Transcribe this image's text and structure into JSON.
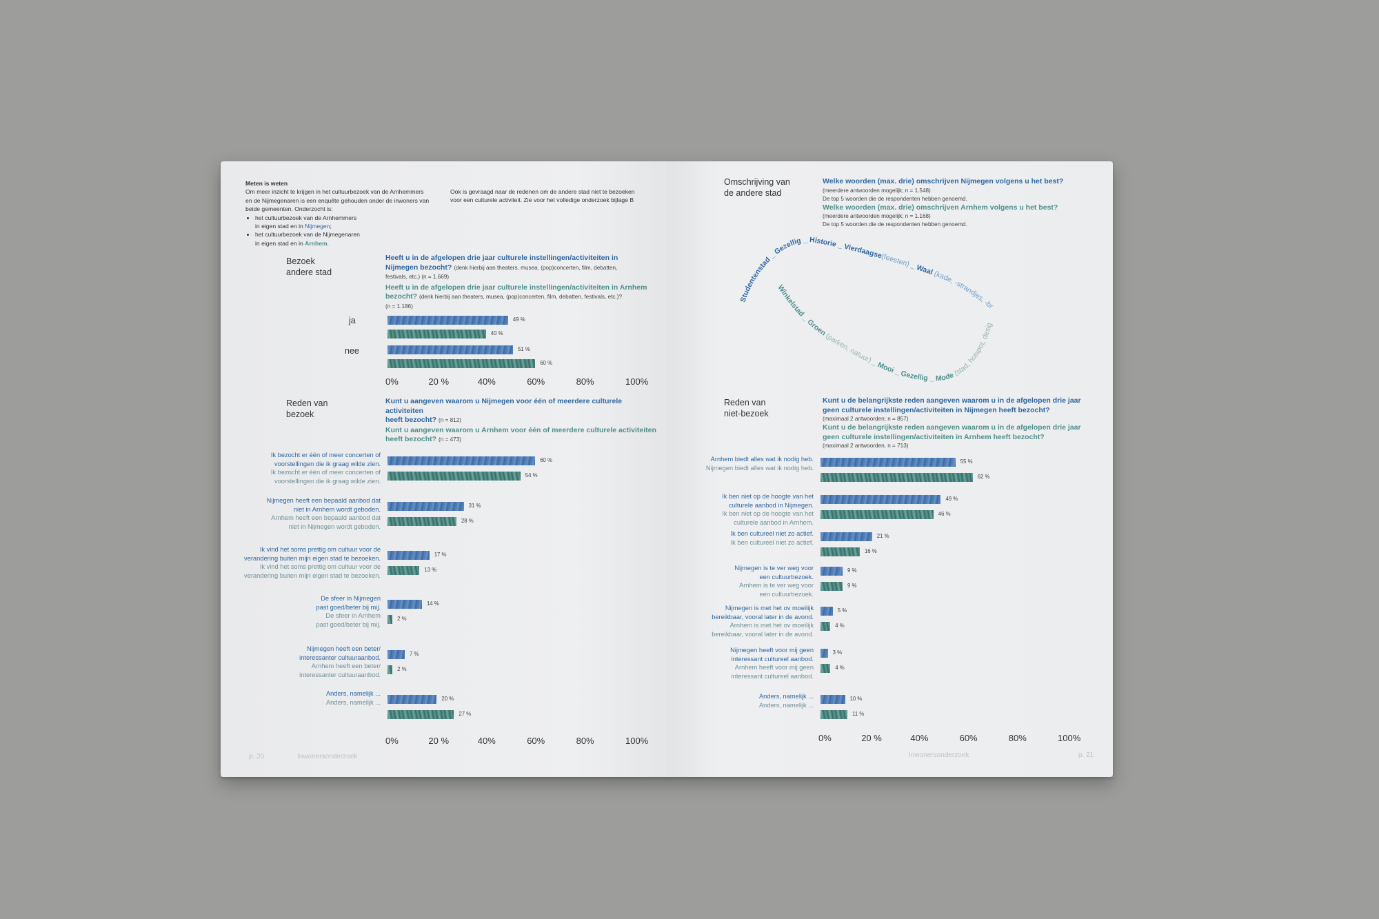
{
  "left": {
    "intro": {
      "heading": "Meten is weten",
      "col1_lines": [
        "Om meer inzicht te krijgen in het cultuurbezoek van de Arnhemmers",
        "en de Nijmegenaren is een enquête gehouden onder de inwoners van",
        "beide gemeenten. Onderzocht is:"
      ],
      "bullet1_a": "het cultuurbezoek van de Arnhemmers",
      "bullet1_b": "in eigen stad en in",
      "bullet1_city": "Nijmegen",
      "bullet2_a": "het cultuurbezoek van de Nijmegenaren",
      "bullet2_b": "in eigen stad en in",
      "bullet2_city": "Arnhem",
      "col2_lines": [
        "Ook is gevraagd naar de redenen om de andere stad niet te bezoeken",
        "voor een culturele activiteit. Zie voor het volledige onderzoek bijlage B"
      ]
    },
    "visit": {
      "title_lines": [
        "Bezoek",
        "andere stad"
      ],
      "q1_lines": [
        "Heeft u in de afgelopen drie jaar culturele instellingen/activiteiten in",
        "Nijmegen bezocht?"
      ],
      "q1_small": "(denk hierbij aan theaters, musea, (pop)concerten, film, debatten,",
      "q1_small2": "festivals, etc.) (n = 1.669)",
      "q2_lines": [
        "Heeft u in de afgelopen drie jaar culturele instellingen/activiteiten in Arnhem",
        "bezocht?"
      ],
      "q2_small": "(denk hierbij aan theaters, musea, (pop)concerten, film, debatten, festivals, etc.)?",
      "q2_small2": "(n = 1.186)",
      "categories": [
        "ja",
        "nee"
      ],
      "nijmegen_values": [
        49,
        51
      ],
      "arnhem_values": [
        40,
        60
      ]
    },
    "reasons": {
      "title_lines": [
        "Reden van",
        "bezoek"
      ],
      "q1_lines": [
        "Kunt u aangeven waarom u Nijmegen voor één of meerdere culturele activiteiten",
        "heeft bezocht?"
      ],
      "q1_n": "(n = 812)",
      "q2_lines": [
        "Kunt u aangeven waarom u Arnhem voor één of meerdere culturele activiteiten",
        "heeft bezocht?"
      ],
      "q2_n": "(n = 473)",
      "items": [
        {
          "l1": [
            "Ik bezocht er één of meer concerten of",
            "voorstellingen die ik graag wilde zien."
          ],
          "l2": [
            "Ik bezocht er één of meer concerten of",
            "voorstellingen die ik graag wilde zien."
          ],
          "v1": 60,
          "v2": 54
        },
        {
          "l1": [
            "Nijmegen heeft een bepaald aanbod dat",
            "niet in Arnhem wordt geboden."
          ],
          "l2": [
            "Arnhem heeft een bepaald aanbod dat",
            "niet in Nijmegen wordt geboden."
          ],
          "v1": 31,
          "v2": 28
        },
        {
          "l1": [
            "Ik vind het soms prettig om cultuur voor de",
            "verandering buiten mijn eigen stad te bezoeken."
          ],
          "l2": [
            "Ik vind het soms prettig om cultuur voor de",
            "verandering buiten mijn eigen stad te bezoeken."
          ],
          "v1": 17,
          "v2": 13
        },
        {
          "l1": [
            "De sfeer in Nijmegen",
            "past goed/beter bij mij."
          ],
          "l2": [
            "De sfeer in Arnhem",
            "past goed/beter bij mij."
          ],
          "v1": 14,
          "v2": 2
        },
        {
          "l1": [
            "Nijmegen heeft een beter/",
            "interessanter cultuuraanbod."
          ],
          "l2": [
            "Arnhem heeft een beter/",
            "interessanter cultuuraanbod."
          ],
          "v1": 7,
          "v2": 2
        },
        {
          "l1": [
            "Anders, namelijk ..."
          ],
          "l2": [
            "Anders, namelijk ..."
          ],
          "v1": 20,
          "v2": 27
        }
      ]
    },
    "axis_ticks_top": [
      "0%",
      "20 %",
      "40%",
      "60%",
      "80%",
      "100%"
    ],
    "axis_ticks_bottom": [
      "0%",
      "20 %",
      "40%",
      "60%",
      "80%",
      "100%"
    ],
    "footer_page": "p. 20",
    "footer_title": "Inwonersonderzoek"
  },
  "right": {
    "description": {
      "title_lines": [
        "Omschrijving van",
        "de andere stad"
      ],
      "q1": "Welke woorden (max. drie) omschrijven Nijmegen volgens u het best?",
      "q1_sub1": "(meerdere antwoorden mogelijk; n = 1.548)",
      "q1_sub2": "De top 5 woorden die de respondenten hebben genoemd.",
      "q2": "Welke woorden (max. drie) omschrijven Arnhem volgens u het best?",
      "q2_sub1": "(meerdere antwoorden mogelijk; n = 1.168)",
      "q2_sub2": "De top 5 woorden die de respondenten hebben genoemd.",
      "nijmegen_words": "Studentenstad _ Gezellig _ Historie _ Vierdaagse",
      "nijmegen_words_light": "(feesten)",
      "nijmegen_words_2": "_ Waal",
      "nijmegen_words_2_light": "(kade, -strandjes, -brug, -terrassen)",
      "arnhem_words": "Winkelstad _ Groen",
      "arnhem_words_light": "(parken, natuur)",
      "arnhem_words_2": "_ Mooi _ Gezellig _ Mode",
      "arnhem_words_2_light": "(stad, hotspot, design)"
    },
    "nonvisit": {
      "title_lines": [
        "Reden van",
        "niet-bezoek"
      ],
      "q1_lines": [
        "Kunt u de belangrijkste reden aangeven waarom u in de afgelopen drie jaar",
        "geen culturele instellingen/activiteiten in Nijmegen heeft bezocht?"
      ],
      "q1_sub": "(maximaal 2 antwoorden; n = 857)",
      "q2_lines": [
        "Kunt u de belangrijkste reden aangeven waarom u in de afgelopen drie jaar",
        "geen culturele instellingen/activiteiten in Arnhem heeft bezocht?"
      ],
      "q2_sub": "(maximaal 2 antwoorden, n = 713)",
      "items": [
        {
          "l1": [
            "Arnhem biedt alles wat ik nodig heb."
          ],
          "l2": [
            "Nijmegen biedt alles wat ik nodig heb."
          ],
          "v1": 55,
          "v2": 62
        },
        {
          "l1": [
            "Ik ben niet op de hoogte van het",
            "culturele aanbod in Nijmegen."
          ],
          "l2": [
            "Ik ben niet op de hoogte van het",
            "culturele aanbod in Arnhem."
          ],
          "v1": 49,
          "v2": 46
        },
        {
          "l1": [
            "Ik ben cultureel niet zo actief."
          ],
          "l2": [
            "Ik ben cultureel niet zo actief."
          ],
          "v1": 21,
          "v2": 16
        },
        {
          "l1": [
            "Nijmegen is te ver weg voor",
            "een cultuurbezoek."
          ],
          "l2": [
            "Arnhem is te ver weg voor",
            "een cultuurbezoek."
          ],
          "v1": 9,
          "v2": 9
        },
        {
          "l1": [
            "Nijmegen is met het ov moeilijk",
            "bereikbaar, vooral later in de avond."
          ],
          "l2": [
            "Arnhem is met het ov moeilijk",
            "bereikbaar, vooral later in de avond."
          ],
          "v1": 5,
          "v2": 4
        },
        {
          "l1": [
            "Nijmegen heeft voor mij geen",
            "interessant cultureel aanbod."
          ],
          "l2": [
            "Arnhem heeft voor mij geen",
            "interessant cultureel aanbod."
          ],
          "v1": 3,
          "v2": 4
        },
        {
          "l1": [
            "Anders, namelijk ..."
          ],
          "l2": [
            "Anders, namelijk ..."
          ],
          "v1": 10,
          "v2": 11
        }
      ]
    },
    "axis_ticks": [
      "0%",
      "20 %",
      "40%",
      "60%",
      "80%",
      "100%"
    ],
    "footer_title": "Inwonersonderzoek",
    "footer_page": "p. 21"
  },
  "chart_data": [
    {
      "type": "bar",
      "title": "Bezoek andere stad",
      "categories": [
        "ja",
        "nee"
      ],
      "series": [
        {
          "values": [
            49,
            51
          ]
        },
        {
          "values": [
            40,
            60
          ]
        }
      ],
      "xlim": [
        0,
        100
      ]
    },
    {
      "type": "bar",
      "title": "Reden van bezoek",
      "categories": [
        "Ik bezocht er één of meer concerten of voorstellingen die ik graag wilde zien.",
        "Nijmegen heeft een bepaald aanbod dat niet in Arnhem wordt geboden.",
        "Ik vind het soms prettig om cultuur voor de verandering buiten mijn eigen stad te bezoeken.",
        "De sfeer in Nijmegen past goed/beter bij mij.",
        "Nijmegen heeft een beter/ interessanter cultuuraanbod.",
        "Anders, namelijk ..."
      ],
      "series": [
        {
          "values": [
            60,
            31,
            17,
            14,
            7,
            20
          ]
        },
        {
          "values": [
            54,
            28,
            13,
            2,
            2,
            27
          ]
        }
      ],
      "xlim": [
        0,
        100
      ]
    },
    {
      "type": "bar",
      "title": "Reden van niet-bezoek",
      "categories": [
        "Arnhem biedt alles wat ik nodig heb.",
        "Ik ben niet op de hoogte van het culturele aanbod in Nijmegen.",
        "Ik ben cultureel niet zo actief.",
        "Nijmegen is te ver weg voor een cultuurbezoek.",
        "Nijmegen is met het ov moeilijk bereikbaar, vooral later in de avond.",
        "Nijmegen heeft voor mij geen interessant cultureel aanbod.",
        "Anders, namelijk ..."
      ],
      "series": [
        {
          "values": [
            55,
            49,
            21,
            9,
            5,
            3,
            10
          ]
        },
        {
          "values": [
            62,
            46,
            16,
            9,
            4,
            4,
            11
          ]
        }
      ],
      "xlim": [
        0,
        100
      ]
    }
  ]
}
